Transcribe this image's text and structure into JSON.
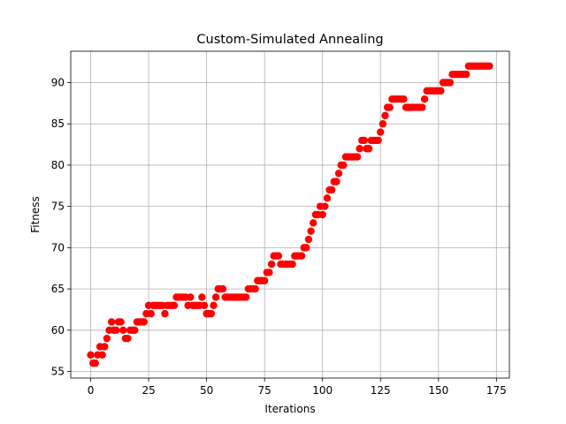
{
  "chart_data": {
    "type": "scatter",
    "title": "Custom-Simulated Annealing",
    "xlabel": "Iterations",
    "ylabel": "Fitness",
    "xlim": [
      -8.6,
      180.6
    ],
    "ylim": [
      54.2,
      93.8
    ],
    "xticks": [
      0,
      25,
      50,
      75,
      100,
      125,
      150,
      175
    ],
    "yticks": [
      55,
      60,
      65,
      70,
      75,
      80,
      85,
      90
    ],
    "grid": true,
    "marker_color": "#ff0000",
    "series": [
      {
        "values": [
          57,
          56,
          56,
          57,
          58,
          57,
          58,
          59,
          60,
          61,
          60,
          60,
          61,
          61,
          60,
          59,
          59,
          60,
          60,
          60,
          61,
          61,
          61,
          61,
          62,
          63,
          62,
          63,
          63,
          63,
          63,
          63,
          62,
          63,
          63,
          63,
          63,
          64,
          64,
          64,
          64,
          64,
          63,
          64,
          63,
          63,
          63,
          63,
          64,
          63,
          62,
          62,
          62,
          63,
          64,
          65,
          65,
          65,
          64,
          64,
          64,
          64,
          64,
          64,
          64,
          64,
          64,
          64,
          65,
          65,
          65,
          65,
          66,
          66,
          66,
          66,
          67,
          67,
          68,
          69,
          69,
          69,
          68,
          68,
          68,
          68,
          68,
          68,
          69,
          69,
          69,
          69,
          70,
          70,
          71,
          72,
          73,
          74,
          74,
          75,
          74,
          75,
          76,
          77,
          77,
          78,
          78,
          79,
          80,
          80,
          81,
          81,
          81,
          81,
          81,
          81,
          82,
          83,
          83,
          82,
          82,
          83,
          83,
          83,
          83,
          84,
          85,
          86,
          87,
          87,
          88,
          88,
          88,
          88,
          88,
          88,
          87,
          87,
          87,
          87,
          87,
          87,
          87,
          87,
          88,
          89,
          89,
          89,
          89,
          89,
          89,
          89,
          90,
          90,
          90,
          90,
          91,
          91,
          91,
          91,
          91,
          91,
          91,
          92,
          92,
          92,
          92,
          92,
          92,
          92,
          92,
          92,
          92
        ]
      }
    ]
  }
}
